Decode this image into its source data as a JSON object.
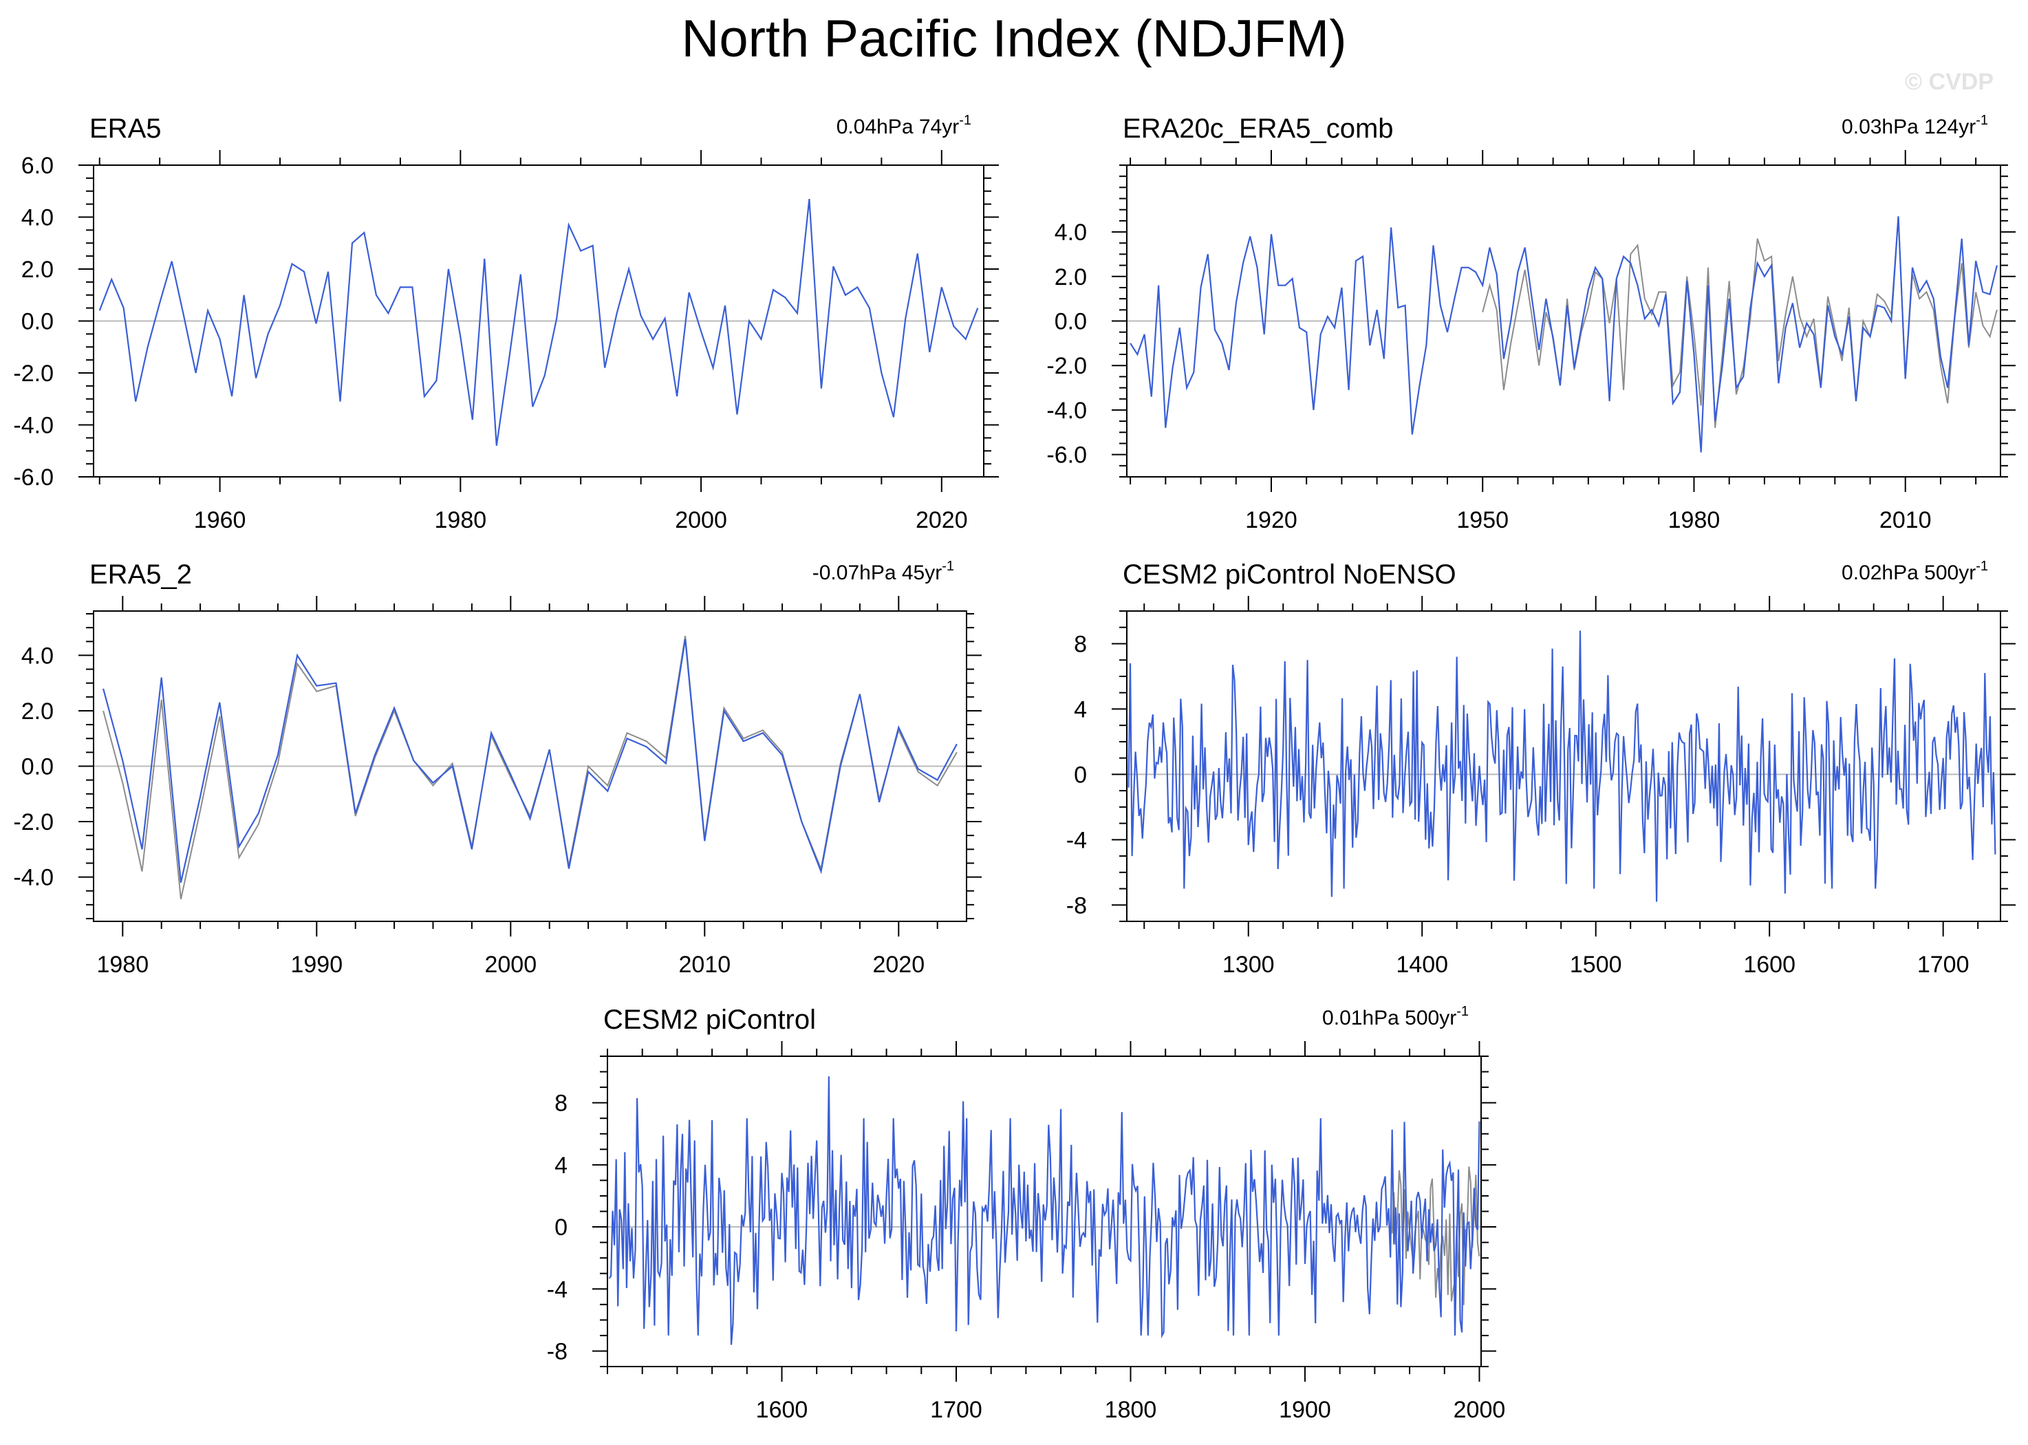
{
  "title": "North Pacific Index (NDJFM)",
  "watermark": "© CVDP",
  "colors": {
    "model": "#3a5fd6",
    "obs": "#8c8c8c",
    "frame": "#000000",
    "zero": "#bbbbbb"
  },
  "chart_data": [
    {
      "type": "line",
      "title": "ERA5",
      "trend_value": "0.04hPa 74yr",
      "trend_exp": "-1",
      "xlim": [
        1949.5,
        2023.5
      ],
      "ylim": [
        -6,
        6
      ],
      "xticks": [
        "1960",
        "1980",
        "2000",
        "2020"
      ],
      "yticks": [
        "6.0",
        "4.0",
        "2.0",
        "0.0",
        "-2.0",
        "-4.0",
        "-6.0"
      ],
      "series": [
        {
          "start": 1950,
          "step": 1,
          "values": [
            0.4,
            1.6,
            0.5,
            -3.1,
            -1.0,
            0.7,
            2.3,
            0.2,
            -2.0,
            0.4,
            -0.7,
            -2.9,
            1.0,
            -2.2,
            -0.5,
            0.6,
            2.2,
            1.9,
            -0.1,
            1.9,
            -3.1,
            3.0,
            3.4,
            1.0,
            0.3,
            1.3,
            1.3,
            -2.9,
            -2.3,
            2.0,
            -0.6,
            -3.8,
            2.4,
            -4.8,
            -1.6,
            1.8,
            -3.3,
            -2.1,
            0.1,
            3.7,
            2.7,
            2.9,
            -1.8,
            0.3,
            2.0,
            0.2,
            -0.7,
            0.1,
            -2.9,
            1.1,
            -0.4,
            -1.8,
            0.6,
            -3.6,
            0.0,
            -0.7,
            1.2,
            0.9,
            0.3,
            4.7,
            -2.6,
            2.1,
            1.0,
            1.3,
            0.5,
            -2.0,
            -3.7,
            0.1,
            2.6,
            -1.2,
            1.3,
            -0.2,
            -0.7,
            0.5
          ]
        }
      ]
    },
    {
      "type": "line",
      "title": "ERA20c_ERA5_comb",
      "trend_value": "0.03hPa 124yr",
      "trend_exp": "-1",
      "xlim": [
        1899.5,
        2023.5
      ],
      "ylim": [
        -7,
        7
      ],
      "xticks": [
        "1920",
        "1950",
        "1980",
        "2010"
      ],
      "yticks": [
        "4.0",
        "2.0",
        "0.0",
        "-2.0",
        "-4.0",
        "-6.0"
      ],
      "series": [
        {
          "start": 1950,
          "step": 1,
          "values": [
            0.4,
            1.6,
            0.5,
            -3.1,
            -1.0,
            0.7,
            2.3,
            0.2,
            -2.0,
            0.4,
            -0.7,
            -2.9,
            1.0,
            -2.2,
            -0.5,
            0.6,
            2.2,
            1.9,
            -0.1,
            1.9,
            -3.1,
            3.0,
            3.4,
            1.0,
            0.3,
            1.3,
            1.3,
            -2.9,
            -2.3,
            2.0,
            -0.6,
            -3.8,
            2.4,
            -4.8,
            -1.6,
            1.8,
            -3.3,
            -2.1,
            0.1,
            3.7,
            2.7,
            2.9,
            -1.8,
            0.3,
            2.0,
            0.2,
            -0.7,
            0.1,
            -2.9,
            1.1,
            -0.4,
            -1.8,
            0.6,
            -3.6,
            0.0,
            -0.7,
            1.2,
            0.9,
            0.3,
            4.7,
            -2.6,
            2.1,
            1.0,
            1.3,
            0.5,
            -2.0,
            -3.7,
            0.1,
            2.6,
            -1.2,
            1.3,
            -0.2,
            -0.7,
            0.5
          ]
        },
        {
          "start": 1900,
          "step": 1,
          "values": [
            -1.0,
            -1.5,
            -0.6,
            -3.4,
            1.6,
            -4.8,
            -2.1,
            -0.3,
            -3.0,
            -2.3,
            1.5,
            3.0,
            -0.4,
            -1.0,
            -2.2,
            0.8,
            2.6,
            3.8,
            2.4,
            -0.6,
            3.9,
            1.6,
            1.6,
            1.9,
            -0.3,
            -0.5,
            -4.0,
            -0.6,
            0.2,
            -0.3,
            1.5,
            -3.1,
            2.7,
            2.9,
            -1.1,
            0.5,
            -1.7,
            4.2,
            0.6,
            0.7,
            -5.1,
            -3.0,
            -1.1,
            3.4,
            0.7,
            -0.5,
            1.0,
            2.4,
            2.4,
            2.2,
            1.6,
            3.3,
            2.1,
            -1.7,
            0.0,
            2.2,
            3.3,
            1.0,
            -1.3,
            1.0,
            -0.8,
            -2.9,
            0.7,
            -2.1,
            -0.3,
            1.4,
            2.4,
            1.9,
            -3.6,
            1.9,
            2.9,
            2.6,
            1.6,
            0.1,
            0.5,
            -0.2,
            1.2,
            -3.7,
            -3.2,
            1.8,
            -1.5,
            -5.9,
            1.6,
            -4.5,
            -2.1,
            1.0,
            -3.0,
            -2.5,
            0.6,
            2.6,
            2.0,
            2.5,
            -2.8,
            -0.3,
            0.8,
            -1.2,
            -0.1,
            -0.6,
            -3.0,
            0.7,
            -0.7,
            -1.5,
            0.2,
            -3.6,
            -0.3,
            -0.7,
            0.7,
            0.6,
            0.0,
            4.7,
            -2.6,
            2.4,
            1.3,
            1.8,
            1.0,
            -1.6,
            -3.0,
            0.2,
            3.7,
            -1.1,
            2.7,
            1.3,
            1.2,
            2.5
          ]
        }
      ]
    },
    {
      "type": "line",
      "title": "ERA5_2",
      "trend_value": "-0.07hPa 45yr",
      "trend_exp": "-1",
      "xlim": [
        1978.5,
        2023.5
      ],
      "ylim": [
        -5.6,
        5.6
      ],
      "xticks": [
        "1980",
        "1990",
        "2000",
        "2010",
        "2020"
      ],
      "yticks": [
        "4.0",
        "2.0",
        "0.0",
        "-2.0",
        "-4.0"
      ],
      "series": [
        {
          "start": 1979,
          "step": 1,
          "values": [
            2.0,
            -0.6,
            -3.8,
            2.4,
            -4.8,
            -1.6,
            1.8,
            -3.3,
            -2.1,
            0.1,
            3.7,
            2.7,
            2.9,
            -1.8,
            0.3,
            2.0,
            0.2,
            -0.7,
            0.1,
            -2.9,
            1.1,
            -0.4,
            -1.8,
            0.6,
            -3.6,
            0.0,
            -0.7,
            1.2,
            0.9,
            0.3,
            4.7,
            -2.6,
            2.1,
            1.0,
            1.3,
            0.5,
            -2.0,
            -3.7,
            0.1,
            2.6,
            -1.2,
            1.3,
            -0.2,
            -0.7,
            0.5
          ]
        },
        {
          "start": 1979,
          "step": 1,
          "values": [
            2.8,
            0.2,
            -3.0,
            3.2,
            -4.2,
            -1.1,
            2.3,
            -2.9,
            -1.7,
            0.4,
            4.0,
            2.9,
            3.0,
            -1.7,
            0.4,
            2.1,
            0.2,
            -0.6,
            0.0,
            -3.0,
            1.2,
            -0.3,
            -1.9,
            0.6,
            -3.7,
            -0.2,
            -0.9,
            1.0,
            0.7,
            0.1,
            4.6,
            -2.7,
            2.0,
            0.9,
            1.2,
            0.4,
            -2.0,
            -3.8,
            0.0,
            2.6,
            -1.3,
            1.4,
            -0.1,
            -0.5,
            0.8
          ]
        }
      ]
    },
    {
      "type": "line",
      "title": "CESM2 piControl NoENSO",
      "trend_value": "0.02hPa 500yr",
      "trend_exp": "-1",
      "xlim": [
        1230,
        1733
      ],
      "ylim": [
        -9,
        10
      ],
      "xticks": [
        "1300",
        "1400",
        "1500",
        "1600",
        "1700"
      ],
      "yticks": [
        "8",
        "4",
        "0",
        "-4",
        "-8"
      ],
      "series": [
        {
          "start": 1231,
          "step": 1,
          "n": 500,
          "seed": 11,
          "sd": 2.9,
          "peaks": [
            [
              1232,
              6.8
            ],
            [
              1233,
              -5.0
            ],
            [
              1348,
              -7.5
            ],
            [
              1491,
              8.8
            ],
            [
              1535,
              -7.8
            ],
            [
              1609,
              -7.3
            ],
            [
              1420,
              7.2
            ],
            [
              1475,
              7.7
            ],
            [
              1672,
              7.1
            ],
            [
              1589,
              -6.8
            ],
            [
              1724,
              6.2
            ],
            [
              1730,
              -4.9
            ]
          ]
        }
      ]
    },
    {
      "type": "line",
      "title": "CESM2 piControl",
      "trend_value": "0.01hPa 500yr",
      "trend_exp": "-1",
      "xlim": [
        1500,
        2001
      ],
      "ylim": [
        -9,
        11
      ],
      "xticks": [
        "1600",
        "1700",
        "1800",
        "1900",
        "2000"
      ],
      "yticks": [
        "8",
        "4",
        "0",
        "-4",
        "-8"
      ],
      "series": [
        {
          "start": 1950,
          "step": 1,
          "n": 51,
          "seed": 5,
          "sd": 2.2,
          "peaks": [],
          "obs": true
        },
        {
          "start": 1501,
          "step": 1,
          "n": 500,
          "seed": 23,
          "sd": 3.0,
          "peaks": [
            [
              1517,
              8.3
            ],
            [
              1571,
              -7.6
            ],
            [
              1627,
              9.7
            ],
            [
              1704,
              8.1
            ],
            [
              1795,
              7.4
            ],
            [
              1819,
              -6.8
            ],
            [
              1909,
              7.0
            ],
            [
              1990,
              -6.8
            ],
            [
              2000,
              6.8
            ],
            [
              1543,
              6.0
            ],
            [
              1760,
              7.6
            ],
            [
              1880,
              -6.2
            ]
          ]
        }
      ]
    }
  ]
}
